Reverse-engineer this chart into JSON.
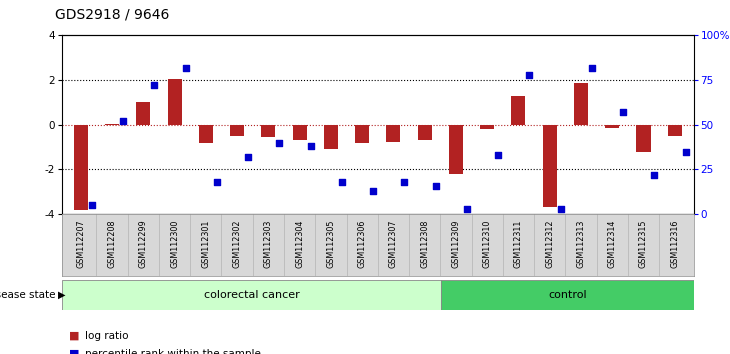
{
  "title": "GDS2918 / 9646",
  "samples": [
    "GSM112207",
    "GSM112208",
    "GSM112299",
    "GSM112300",
    "GSM112301",
    "GSM112302",
    "GSM112303",
    "GSM112304",
    "GSM112305",
    "GSM112306",
    "GSM112307",
    "GSM112308",
    "GSM112309",
    "GSM112310",
    "GSM112311",
    "GSM112312",
    "GSM112313",
    "GSM112314",
    "GSM112315",
    "GSM112316"
  ],
  "log_ratio": [
    -3.8,
    0.05,
    1.0,
    2.05,
    -0.8,
    -0.5,
    -0.55,
    -0.7,
    -1.1,
    -0.8,
    -0.75,
    -0.7,
    -2.2,
    -0.2,
    1.3,
    -3.7,
    1.85,
    -0.15,
    -1.2,
    -0.5
  ],
  "percentile": [
    5,
    52,
    72,
    82,
    18,
    32,
    40,
    38,
    18,
    13,
    18,
    16,
    3,
    33,
    78,
    3,
    82,
    57,
    22,
    35
  ],
  "colorectal_count": 12,
  "control_count": 8,
  "bar_color": "#b22222",
  "dot_color": "#0000cc",
  "ylim_left": [
    -4,
    4
  ],
  "ylim_right": [
    0,
    100
  ],
  "yticks_left": [
    -4,
    -2,
    0,
    2,
    4
  ],
  "yticks_right": [
    0,
    25,
    50,
    75,
    100
  ],
  "ytick_labels_right": [
    "0",
    "25",
    "50",
    "75",
    "100%"
  ],
  "colorectal_color": "#ccffcc",
  "control_color": "#44cc66",
  "xlabel_cancer": "colorectal cancer",
  "xlabel_control": "control",
  "legend_bar": "log ratio",
  "legend_dot": "percentile rank within the sample",
  "disease_state_label": "disease state"
}
